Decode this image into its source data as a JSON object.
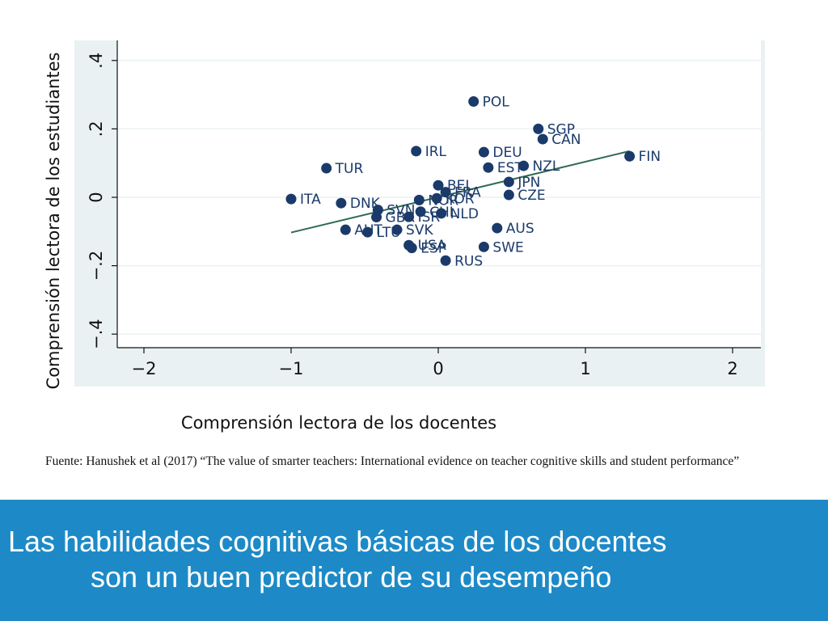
{
  "chart_data": {
    "type": "scatter",
    "xlabel": "Comprensión lectora de los docentes",
    "ylabel": "Comprensión lectora de los estudiantes",
    "xlim": [
      -2.2,
      2.2
    ],
    "ylim": [
      -0.45,
      0.45
    ],
    "x_ticks": [
      -2,
      -1,
      0,
      1,
      2
    ],
    "x_tick_labels": [
      "−2",
      "−1",
      "0",
      "1",
      "2"
    ],
    "y_ticks": [
      -0.4,
      -0.2,
      0,
      0.2,
      0.4
    ],
    "y_tick_labels": [
      "−.4",
      "−.2",
      "0",
      ".2",
      ".4"
    ],
    "grid": true,
    "points": [
      {
        "label": "POL",
        "x": 0.24,
        "y": 0.28
      },
      {
        "label": "SGP",
        "x": 0.68,
        "y": 0.2
      },
      {
        "label": "CAN",
        "x": 0.71,
        "y": 0.17
      },
      {
        "label": "IRL",
        "x": -0.15,
        "y": 0.135
      },
      {
        "label": "DEU",
        "x": 0.31,
        "y": 0.132
      },
      {
        "label": "FIN",
        "x": 1.3,
        "y": 0.12
      },
      {
        "label": "NZL",
        "x": 0.58,
        "y": 0.092
      },
      {
        "label": "EST",
        "x": 0.34,
        "y": 0.087
      },
      {
        "label": "TUR",
        "x": -0.76,
        "y": 0.085
      },
      {
        "label": "JPN",
        "x": 0.48,
        "y": 0.045
      },
      {
        "label": "BEL",
        "x": 0.0,
        "y": 0.035
      },
      {
        "label": "FRA",
        "x": 0.05,
        "y": 0.015
      },
      {
        "label": "CZE",
        "x": 0.48,
        "y": 0.007
      },
      {
        "label": "ITA",
        "x": -1.0,
        "y": -0.005
      },
      {
        "label": "KOR",
        "x": -0.01,
        "y": -0.003
      },
      {
        "label": "NOR",
        "x": -0.13,
        "y": -0.008
      },
      {
        "label": "DNK",
        "x": -0.66,
        "y": -0.017
      },
      {
        "label": "SVN",
        "x": -0.41,
        "y": -0.037
      },
      {
        "label": "CHL",
        "x": -0.12,
        "y": -0.042
      },
      {
        "label": "NLD",
        "x": 0.02,
        "y": -0.047
      },
      {
        "label": "ISR",
        "x": -0.2,
        "y": -0.057
      },
      {
        "label": "GBR",
        "x": -0.42,
        "y": -0.058
      },
      {
        "label": "AUS",
        "x": 0.4,
        "y": -0.09
      },
      {
        "label": "AUT",
        "x": -0.63,
        "y": -0.095
      },
      {
        "label": "SVK",
        "x": -0.28,
        "y": -0.095
      },
      {
        "label": "LTU",
        "x": -0.48,
        "y": -0.102
      },
      {
        "label": "USA",
        "x": -0.2,
        "y": -0.14
      },
      {
        "label": "SWE",
        "x": 0.31,
        "y": -0.145
      },
      {
        "label": "ESP",
        "x": -0.18,
        "y": -0.148
      },
      {
        "label": "RUS",
        "x": 0.05,
        "y": -0.185
      }
    ],
    "fit_line": {
      "x": [
        -1.0,
        1.3
      ],
      "y": [
        -0.103,
        0.135
      ]
    },
    "colors": {
      "marker": "#1a3a6a",
      "label": "#1a3a6a",
      "fit_line": "#2e6b4f",
      "panel": "#eaf1f3",
      "plot": "#ffffff",
      "grid": "#eaf1f3"
    }
  },
  "source_note": "Fuente: Hanushek et al (2017) “The value of smarter teachers: International evidence on teacher cognitive skills and student performance”",
  "banner": {
    "line1": "Las habilidades cognitivas básicas de los docentes",
    "line2": "son un buen predictor de su desempeño",
    "background": "#1d8ac7"
  }
}
